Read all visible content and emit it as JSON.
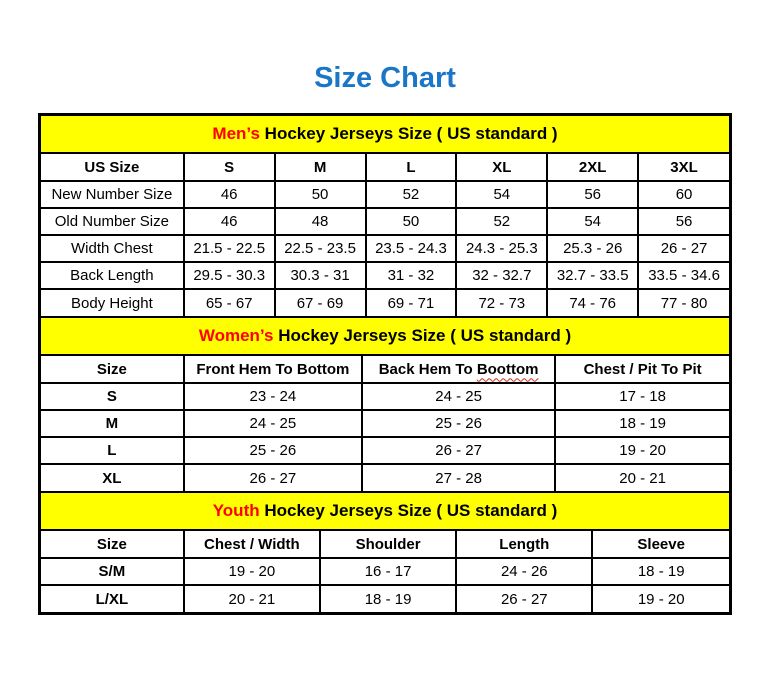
{
  "page_title": "Size Chart",
  "colors": {
    "title_blue": "#1B76C8",
    "band_yellow": "#FFFF00",
    "accent_red": "#FF0000",
    "border_black": "#000000"
  },
  "sections": [
    {
      "id": "mens",
      "band": {
        "highlight": "Men’s",
        "rest": " Hockey Jerseys Size ( US standard )"
      },
      "columns": [
        "US Size",
        "S",
        "M",
        "L",
        "XL",
        "2XL",
        "3XL"
      ],
      "rows": [
        [
          "New Number Size",
          "46",
          "50",
          "52",
          "54",
          "56",
          "60"
        ],
        [
          "Old Number Size",
          "46",
          "48",
          "50",
          "52",
          "54",
          "56"
        ],
        [
          "Width Chest",
          "21.5 - 22.5",
          "22.5 - 23.5",
          "23.5 - 24.3",
          "24.3 - 25.3",
          "25.3 - 26",
          "26 - 27"
        ],
        [
          "Back Length",
          "29.5 - 30.3",
          "30.3 - 31",
          "31 - 32",
          "32 - 32.7",
          "32.7 - 33.5",
          "33.5 - 34.6"
        ],
        [
          "Body Height",
          "65 - 67",
          "67 - 69",
          "69 - 71",
          "72 - 73",
          "74 - 76",
          "77 - 80"
        ]
      ]
    },
    {
      "id": "womens",
      "band": {
        "highlight": "Women’s",
        "rest": " Hockey Jerseys Size ( US standard )"
      },
      "columns": [
        "Size",
        "Front Hem To Bottom",
        {
          "label": "Back Hem To Boottom",
          "squiggle": "Boottom"
        },
        "Chest / Pit To Pit"
      ],
      "rows": [
        [
          "S",
          "23 - 24",
          "24 - 25",
          "17 - 18"
        ],
        [
          "M",
          "24 - 25",
          "25 - 26",
          "18 - 19"
        ],
        [
          "L",
          "25 - 26",
          "26 - 27",
          "19 - 20"
        ],
        [
          "XL",
          "26 - 27",
          "27 - 28",
          "20 - 21"
        ]
      ]
    },
    {
      "id": "youth",
      "band": {
        "highlight": "Youth",
        "rest": " Hockey Jerseys Size ( US standard )"
      },
      "columns": [
        "Size",
        "Chest / Width",
        "Shoulder",
        "Length",
        "Sleeve"
      ],
      "rows": [
        [
          "S/M",
          "19 - 20",
          "16 - 17",
          "24 - 26",
          "18 - 19"
        ],
        [
          "L/XL",
          "20 - 21",
          "18 - 19",
          "26 - 27",
          "19 - 20"
        ]
      ]
    }
  ]
}
